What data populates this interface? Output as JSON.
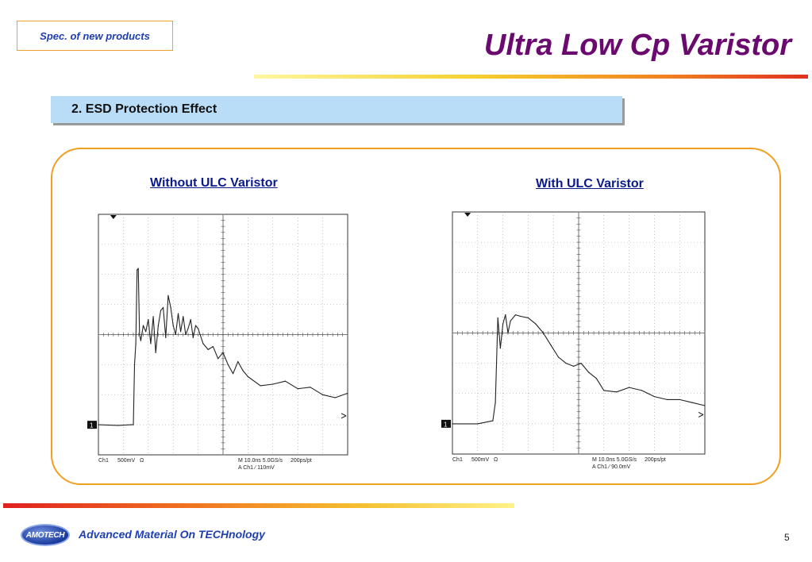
{
  "header": {
    "spec_label": "Spec. of new products",
    "title": "Ultra Low Cp Varistor",
    "section": "2. ESD Protection Effect"
  },
  "footer": {
    "tagline": "Advanced Material On TECHnology",
    "logo_text": "AMOTECH",
    "page_number": "5"
  },
  "colors": {
    "title": "#6a0a6e",
    "spec_text": "#1f3fb0",
    "frame": "#f0a020",
    "section_bar": "#b9dcf7",
    "panel_label": "#0a1a8c",
    "trace": "#222222"
  },
  "chart_data": [
    {
      "type": "line",
      "title": "Without ULC Varistor",
      "grid": true,
      "marker": "1",
      "readout": {
        "ch": "Ch1",
        "scale": "500mV",
        "coupling": "Ω",
        "timebase": "M 10.0ns 5.0GS/s",
        "resolution": "200ps/pt",
        "trigger": "A  Ch1  ∕  110mV"
      },
      "xlim": [
        0,
        10
      ],
      "ylim": [
        -4,
        4
      ],
      "x": [
        0,
        0.8,
        1.3,
        1.4,
        1.45,
        1.5,
        1.55,
        1.6,
        1.65,
        1.7,
        1.8,
        1.9,
        2.0,
        2.1,
        2.2,
        2.3,
        2.4,
        2.5,
        2.6,
        2.7,
        2.8,
        2.9,
        3.0,
        3.1,
        3.2,
        3.3,
        3.4,
        3.5,
        3.6,
        3.7,
        3.8,
        3.9,
        4.0,
        4.2,
        4.4,
        4.6,
        4.8,
        5.0,
        5.2,
        5.4,
        5.6,
        5.8,
        6.0,
        6.5,
        7.0,
        7.5,
        8.0,
        8.5,
        9.0,
        9.5,
        10
      ],
      "values": [
        -3.0,
        -3.02,
        -3.0,
        -3.0,
        -1.0,
        -0.3,
        2.15,
        2.2,
        0.0,
        -0.2,
        0.3,
        0.1,
        0.5,
        -0.3,
        0.6,
        -0.6,
        0.3,
        0.8,
        0.9,
        -0.1,
        1.3,
        0.9,
        0.3,
        0.0,
        0.7,
        0.1,
        0.6,
        0.0,
        0.2,
        0.5,
        -0.1,
        0.3,
        0.2,
        -0.3,
        -0.5,
        -0.4,
        -0.8,
        -0.6,
        -1.0,
        -1.3,
        -0.9,
        -1.2,
        -1.4,
        -1.7,
        -1.65,
        -1.55,
        -1.8,
        -1.75,
        -2.0,
        -2.1,
        -1.95
      ]
    },
    {
      "type": "line",
      "title": "With ULC Varistor",
      "grid": true,
      "marker": "1",
      "readout": {
        "ch": "Ch1",
        "scale": "500mV",
        "coupling": "Ω",
        "timebase": "M 10.0ns 5.0GS/s",
        "resolution": "200ps/pt",
        "trigger": "A  Ch1  ∕  90.0mV"
      },
      "xlim": [
        0,
        10
      ],
      "ylim": [
        -4,
        4
      ],
      "x": [
        0,
        1.0,
        1.6,
        1.7,
        1.8,
        1.9,
        2.0,
        2.1,
        2.2,
        2.3,
        2.5,
        2.7,
        3.0,
        3.3,
        3.6,
        3.9,
        4.2,
        4.5,
        4.8,
        5.1,
        5.4,
        5.7,
        6.0,
        6.5,
        7.0,
        7.5,
        8.0,
        8.5,
        9.0,
        9.5,
        10
      ],
      "values": [
        -3.0,
        -3.0,
        -2.9,
        -2.3,
        0.5,
        -0.5,
        0.3,
        0.6,
        0.0,
        0.4,
        0.6,
        0.55,
        0.5,
        0.3,
        0.0,
        -0.4,
        -0.8,
        -1.0,
        -1.1,
        -1.0,
        -1.3,
        -1.5,
        -1.9,
        -1.95,
        -1.8,
        -1.9,
        -2.1,
        -2.2,
        -2.2,
        -2.3,
        -2.4
      ]
    }
  ]
}
